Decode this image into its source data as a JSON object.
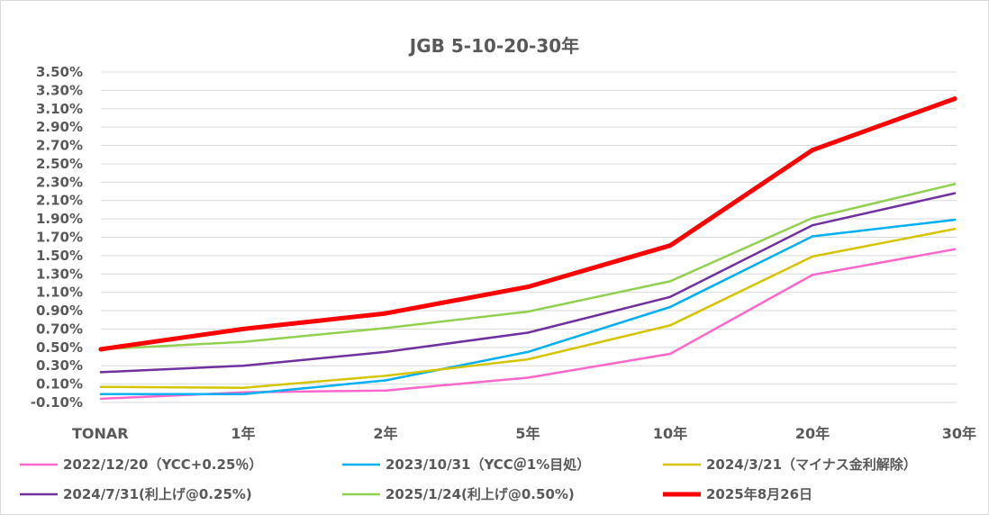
{
  "chart_data": {
    "type": "line",
    "title": "JGB 5-10-20-30年",
    "xlabel": "",
    "ylabel": "",
    "categories": [
      "TONAR",
      "1年",
      "2年",
      "5年",
      "10年",
      "20年",
      "30年"
    ],
    "ylim": [
      -0.1,
      3.6
    ],
    "y_ticks": [
      "3.50%",
      "3.30%",
      "3.10%",
      "2.90%",
      "2.70%",
      "2.50%",
      "2.30%",
      "2.10%",
      "1.90%",
      "1.70%",
      "1.50%",
      "1.30%",
      "1.10%",
      "0.90%",
      "0.70%",
      "0.50%",
      "0.30%",
      "0.10%",
      "-0.10%"
    ],
    "y_tick_values": [
      3.5,
      3.3,
      3.1,
      2.9,
      2.7,
      2.5,
      2.3,
      2.1,
      1.9,
      1.7,
      1.5,
      1.3,
      1.1,
      0.9,
      0.7,
      0.5,
      0.3,
      0.1,
      -0.1
    ],
    "grid": true,
    "legend_position": "bottom",
    "series": [
      {
        "name": "2022/12/20（YCC+0.25％）",
        "color": "#ff66cc",
        "values": [
          -0.06,
          0.01,
          0.03,
          0.17,
          0.43,
          1.29,
          1.57
        ]
      },
      {
        "name": "2023/10/31（YCC＠1%目処）",
        "color": "#00b0f0",
        "values": [
          -0.01,
          -0.01,
          0.14,
          0.45,
          0.94,
          1.71,
          1.89
        ]
      },
      {
        "name": "2024/3/21（マイナス金利解除）",
        "color": "#d4c500",
        "values": [
          0.07,
          0.06,
          0.19,
          0.37,
          0.74,
          1.49,
          1.79
        ]
      },
      {
        "name": "2024/7/31(利上げ@0.25%)",
        "color": "#7030a0",
        "values": [
          0.23,
          0.3,
          0.45,
          0.66,
          1.05,
          1.83,
          2.18
        ]
      },
      {
        "name": "2025/1/24(利上げ@0.50%)",
        "color": "#92d050",
        "values": [
          0.48,
          0.56,
          0.71,
          0.89,
          1.22,
          1.91,
          2.28
        ]
      },
      {
        "name": "2025年8月26日",
        "color": "#ff0000",
        "values": [
          0.48,
          0.7,
          0.87,
          1.16,
          1.61,
          2.65,
          3.21
        ],
        "bold": true
      }
    ]
  }
}
